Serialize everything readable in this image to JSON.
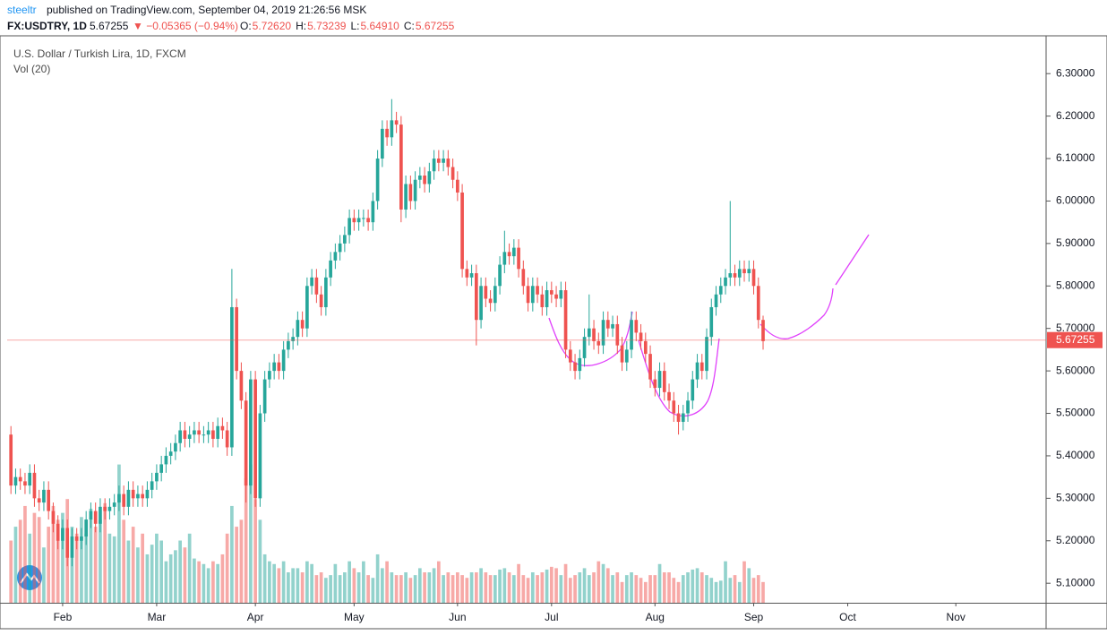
{
  "header": {
    "author": "steeltr",
    "published": "published on TradingView.com, September 04, 2019 21:26:56 MSK"
  },
  "chart_data": {
    "type": "candlestick",
    "symbol": "FX:USDTRY, 1D",
    "change": "▼ −0.05365 (−0.94%)",
    "ohlc_labels": [
      {
        "key": "O:",
        "value": "5.72620"
      },
      {
        "key": "H:",
        "value": "5.73239"
      },
      {
        "key": "L:",
        "value": "5.64910"
      },
      {
        "key": "C:",
        "value": "5.67255"
      }
    ],
    "title": "U.S. Dollar / Turkish Lira, 1D, FXCM",
    "volume_label": "Vol (20)",
    "up_color": "#26a69a",
    "down_color": "#ef5350",
    "open": [
      5.45,
      5.33,
      5.35,
      5.34,
      5.33,
      5.36,
      5.3,
      5.29,
      5.32,
      5.27,
      5.24,
      5.2,
      5.23,
      5.16,
      5.21,
      5.2,
      5.21,
      5.25,
      5.27,
      5.24,
      5.28,
      5.27,
      5.28,
      5.29,
      5.31,
      5.28,
      5.32,
      5.3,
      5.31,
      5.3,
      5.32,
      5.34,
      5.36,
      5.38,
      5.4,
      5.41,
      5.43,
      5.46,
      5.44,
      5.45,
      5.46,
      5.45,
      5.45,
      5.46,
      5.44,
      5.47,
      5.46,
      5.42,
      5.75,
      5.6,
      5.53,
      5.33,
      5.58,
      5.3,
      5.5,
      5.58,
      5.6,
      5.62,
      5.6,
      5.65,
      5.67,
      5.68,
      5.72,
      5.7,
      5.8,
      5.82,
      5.78,
      5.75,
      5.82,
      5.86,
      5.88,
      5.9,
      5.92,
      5.96,
      5.95,
      5.96,
      5.96,
      5.95,
      6.0,
      6.1,
      6.17,
      6.15,
      6.19,
      6.18,
      5.98,
      6.04,
      6.0,
      6.05,
      6.06,
      6.04,
      6.07,
      6.1,
      6.09,
      6.1,
      6.08,
      6.05,
      6.02,
      5.84,
      5.82,
      5.83,
      5.72,
      5.8,
      5.77,
      5.76,
      5.8,
      5.85,
      5.88,
      5.87,
      5.89,
      5.84,
      5.8,
      5.76,
      5.8,
      5.78,
      5.75,
      5.79,
      5.78,
      5.77,
      5.79,
      5.65,
      5.62,
      5.6,
      5.63,
      5.68,
      5.7,
      5.67,
      5.66,
      5.72,
      5.7,
      5.71,
      5.66,
      5.62,
      5.65,
      5.72,
      5.69,
      5.67,
      5.64,
      5.58,
      5.56,
      5.6,
      5.55,
      5.53,
      5.5,
      5.48,
      5.5,
      5.53,
      5.58,
      5.62,
      5.6,
      5.68,
      5.75,
      5.78,
      5.8,
      5.82,
      5.83,
      5.82,
      5.84,
      5.83,
      5.84,
      5.8,
      5.72
    ],
    "high": [
      5.47,
      5.37,
      5.37,
      5.36,
      5.38,
      5.38,
      5.32,
      5.34,
      5.34,
      5.29,
      5.26,
      5.25,
      5.25,
      5.23,
      5.23,
      5.23,
      5.27,
      5.29,
      5.29,
      5.3,
      5.3,
      5.3,
      5.31,
      5.33,
      5.33,
      5.34,
      5.34,
      5.33,
      5.33,
      5.34,
      5.36,
      5.38,
      5.4,
      5.42,
      5.43,
      5.45,
      5.48,
      5.48,
      5.47,
      5.48,
      5.48,
      5.47,
      5.48,
      5.48,
      5.49,
      5.49,
      5.48,
      5.84,
      5.77,
      5.62,
      5.55,
      5.6,
      5.6,
      5.52,
      5.6,
      5.62,
      5.64,
      5.64,
      5.67,
      5.69,
      5.7,
      5.74,
      5.74,
      5.82,
      5.84,
      5.84,
      5.8,
      5.84,
      5.88,
      5.9,
      5.92,
      5.94,
      5.98,
      5.98,
      5.98,
      5.98,
      5.98,
      6.02,
      6.12,
      6.19,
      6.19,
      6.24,
      6.21,
      6.2,
      6.06,
      6.06,
      6.07,
      6.08,
      6.08,
      6.09,
      6.12,
      6.12,
      6.12,
      6.12,
      6.1,
      6.07,
      6.04,
      5.86,
      5.85,
      5.85,
      5.82,
      5.82,
      5.79,
      5.82,
      5.87,
      5.93,
      5.9,
      5.91,
      5.91,
      5.86,
      5.82,
      5.82,
      5.82,
      5.8,
      5.81,
      5.81,
      5.8,
      5.81,
      5.81,
      5.67,
      5.64,
      5.65,
      5.7,
      5.78,
      5.72,
      5.69,
      5.74,
      5.74,
      5.73,
      5.73,
      5.68,
      5.67,
      5.74,
      5.74,
      5.71,
      5.69,
      5.66,
      5.6,
      5.62,
      5.62,
      5.57,
      5.55,
      5.52,
      5.52,
      5.55,
      5.6,
      5.64,
      5.64,
      5.7,
      5.77,
      5.8,
      5.82,
      5.84,
      6.0,
      5.85,
      5.86,
      5.86,
      5.86,
      5.86,
      5.82,
      5.73
    ],
    "low": [
      5.31,
      5.31,
      5.32,
      5.31,
      5.31,
      5.28,
      5.27,
      5.27,
      5.25,
      5.22,
      5.18,
      5.18,
      5.14,
      5.14,
      5.18,
      5.18,
      5.19,
      5.23,
      5.22,
      5.22,
      5.25,
      5.25,
      5.26,
      5.27,
      5.26,
      5.26,
      5.28,
      5.28,
      5.28,
      5.28,
      5.3,
      5.32,
      5.34,
      5.36,
      5.38,
      5.39,
      5.41,
      5.42,
      5.42,
      5.43,
      5.43,
      5.43,
      5.43,
      5.42,
      5.42,
      5.44,
      5.4,
      5.4,
      5.58,
      5.51,
      5.29,
      5.31,
      5.28,
      5.28,
      5.48,
      5.56,
      5.58,
      5.58,
      5.58,
      5.63,
      5.65,
      5.66,
      5.68,
      5.68,
      5.78,
      5.76,
      5.73,
      5.73,
      5.8,
      5.84,
      5.86,
      5.88,
      5.9,
      5.93,
      5.93,
      5.94,
      5.93,
      5.93,
      5.98,
      6.08,
      6.13,
      6.13,
      6.16,
      5.95,
      5.96,
      5.98,
      5.98,
      6.03,
      6.02,
      6.02,
      6.05,
      6.07,
      6.07,
      6.06,
      6.03,
      6.0,
      5.82,
      5.8,
      5.8,
      5.66,
      5.7,
      5.75,
      5.74,
      5.74,
      5.78,
      5.83,
      5.85,
      5.85,
      5.82,
      5.78,
      5.74,
      5.74,
      5.76,
      5.73,
      5.73,
      5.76,
      5.75,
      5.75,
      5.63,
      5.6,
      5.58,
      5.58,
      5.61,
      5.66,
      5.65,
      5.64,
      5.64,
      5.68,
      5.68,
      5.64,
      5.6,
      5.6,
      5.63,
      5.67,
      5.65,
      5.62,
      5.56,
      5.54,
      5.54,
      5.53,
      5.51,
      5.48,
      5.45,
      5.46,
      5.48,
      5.51,
      5.56,
      5.58,
      5.58,
      5.66,
      5.73,
      5.76,
      5.78,
      5.8,
      5.8,
      5.8,
      5.81,
      5.81,
      5.78,
      5.7,
      5.65
    ],
    "close": [
      5.33,
      5.35,
      5.34,
      5.33,
      5.36,
      5.3,
      5.29,
      5.32,
      5.27,
      5.24,
      5.2,
      5.23,
      5.16,
      5.21,
      5.2,
      5.21,
      5.25,
      5.27,
      5.24,
      5.28,
      5.27,
      5.28,
      5.29,
      5.31,
      5.28,
      5.32,
      5.3,
      5.31,
      5.3,
      5.32,
      5.34,
      5.36,
      5.38,
      5.4,
      5.41,
      5.43,
      5.46,
      5.44,
      5.45,
      5.46,
      5.45,
      5.45,
      5.46,
      5.44,
      5.47,
      5.46,
      5.42,
      5.75,
      5.6,
      5.53,
      5.33,
      5.58,
      5.3,
      5.5,
      5.58,
      5.6,
      5.62,
      5.6,
      5.65,
      5.67,
      5.68,
      5.72,
      5.7,
      5.8,
      5.82,
      5.78,
      5.75,
      5.82,
      5.86,
      5.88,
      5.9,
      5.92,
      5.96,
      5.95,
      5.96,
      5.96,
      5.95,
      6.0,
      6.1,
      6.17,
      6.15,
      6.19,
      6.18,
      5.98,
      6.04,
      6.0,
      6.05,
      6.06,
      6.04,
      6.07,
      6.1,
      6.09,
      6.1,
      6.08,
      6.05,
      6.02,
      5.84,
      5.82,
      5.83,
      5.72,
      5.8,
      5.77,
      5.76,
      5.8,
      5.85,
      5.88,
      5.87,
      5.89,
      5.84,
      5.8,
      5.76,
      5.8,
      5.78,
      5.75,
      5.79,
      5.78,
      5.77,
      5.79,
      5.65,
      5.62,
      5.6,
      5.63,
      5.68,
      5.7,
      5.67,
      5.66,
      5.72,
      5.7,
      5.71,
      5.66,
      5.62,
      5.65,
      5.72,
      5.69,
      5.67,
      5.64,
      5.58,
      5.56,
      5.6,
      5.55,
      5.53,
      5.5,
      5.48,
      5.5,
      5.53,
      5.58,
      5.62,
      5.6,
      5.68,
      5.75,
      5.78,
      5.8,
      5.82,
      5.83,
      5.82,
      5.84,
      5.83,
      5.84,
      5.8,
      5.72,
      5.67
    ],
    "volume": [
      45,
      55,
      60,
      70,
      50,
      65,
      62,
      40,
      55,
      70,
      60,
      65,
      75,
      55,
      50,
      62,
      50,
      68,
      55,
      60,
      72,
      50,
      48,
      100,
      60,
      45,
      55,
      40,
      50,
      35,
      42,
      50,
      45,
      30,
      35,
      38,
      45,
      40,
      50,
      32,
      30,
      28,
      25,
      30,
      28,
      35,
      50,
      70,
      55,
      60,
      90,
      100,
      75,
      60,
      35,
      30,
      28,
      25,
      30,
      22,
      25,
      25,
      22,
      30,
      28,
      20,
      22,
      18,
      20,
      28,
      20,
      22,
      30,
      25,
      22,
      30,
      20,
      18,
      35,
      25,
      30,
      22,
      20,
      20,
      22,
      18,
      20,
      25,
      22,
      22,
      25,
      30,
      20,
      22,
      20,
      22,
      20,
      18,
      22,
      22,
      25,
      22,
      20,
      20,
      24,
      25,
      22,
      20,
      28,
      20,
      18,
      22,
      20,
      22,
      24,
      26,
      25,
      20,
      28,
      18,
      20,
      22,
      25,
      20,
      22,
      30,
      28,
      25,
      20,
      22,
      15,
      20,
      22,
      20,
      18,
      15,
      20,
      20,
      28,
      22,
      22,
      18,
      15,
      20,
      22,
      24,
      25,
      22,
      20,
      18,
      15,
      16,
      30,
      18,
      20,
      15,
      30,
      25,
      18,
      20,
      15
    ],
    "volume_lim": [
      0,
      410
    ],
    "xlim": [
      -0.8,
      220.2
    ],
    "xticks": [
      {
        "value": 11,
        "label": "Feb"
      },
      {
        "value": 31,
        "label": "Mar"
      },
      {
        "value": 52,
        "label": "Apr"
      },
      {
        "value": 73,
        "label": "May"
      },
      {
        "value": 95,
        "label": "Jun"
      },
      {
        "value": 115,
        "label": "Jul"
      },
      {
        "value": 137,
        "label": "Aug"
      },
      {
        "value": 158,
        "label": "Sep"
      },
      {
        "value": 178,
        "label": "Oct"
      },
      {
        "value": 201,
        "label": "Nov"
      }
    ],
    "ylim": [
      5.054,
      6.389
    ],
    "yticks": [
      {
        "value": 5.1,
        "label": "5.10000"
      },
      {
        "value": 5.2,
        "label": "5.20000"
      },
      {
        "value": 5.3,
        "label": "5.30000"
      },
      {
        "value": 5.4,
        "label": "5.40000"
      },
      {
        "value": 5.5,
        "label": "5.50000"
      },
      {
        "value": 5.6,
        "label": "5.60000"
      },
      {
        "value": 5.7,
        "label": "5.70000"
      },
      {
        "value": 5.8,
        "label": "5.80000"
      },
      {
        "value": 5.9,
        "label": "5.90000"
      },
      {
        "value": 6.0,
        "label": "6.00000"
      },
      {
        "value": 6.1,
        "label": "6.10000"
      },
      {
        "value": 6.2,
        "label": "6.20000"
      },
      {
        "value": 6.3,
        "label": "6.30000"
      }
    ],
    "last_price": {
      "value": 5.67255,
      "label": "5.67255"
    },
    "last_color": "#ef5350",
    "grid": false
  }
}
